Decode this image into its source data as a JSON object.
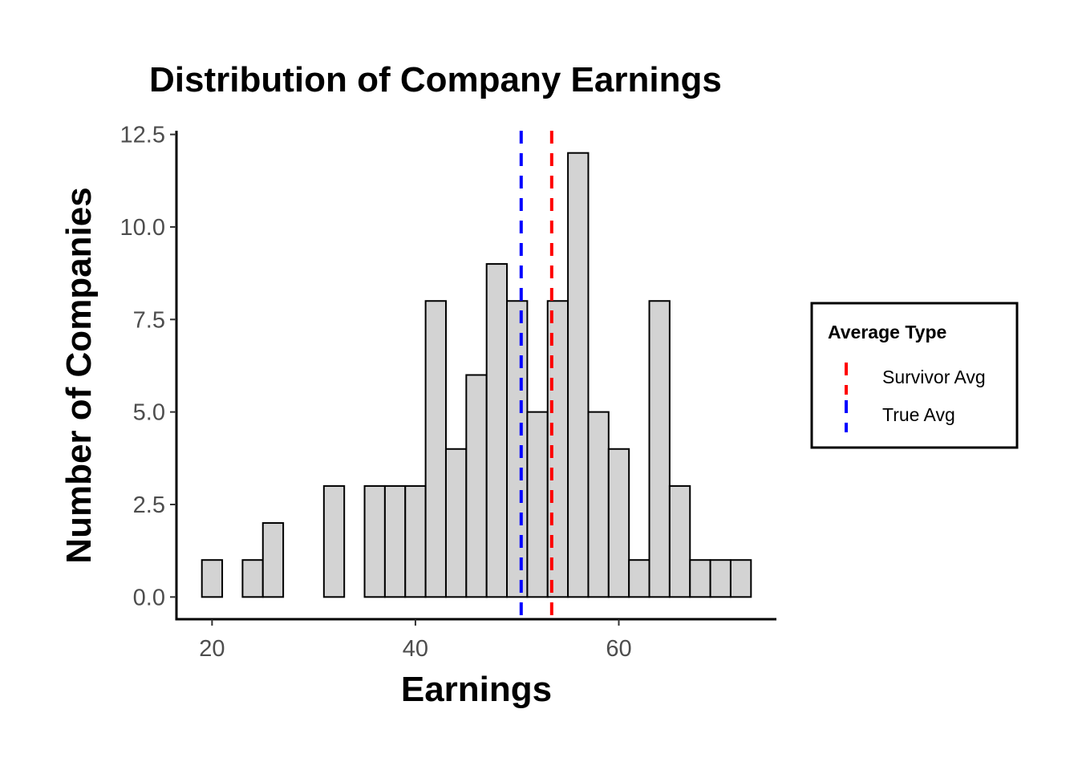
{
  "chart_data": {
    "type": "bar",
    "title": "Distribution of Company Earnings",
    "xlabel": "Earnings",
    "ylabel": "Number of Companies",
    "xlim": [
      16.5,
      75.5
    ],
    "ylim": [
      -0.6,
      12.6
    ],
    "x_ticks": [
      20,
      40,
      60
    ],
    "x_tick_labels": [
      "20",
      "40",
      "60"
    ],
    "y_ticks": [
      0,
      2.5,
      5,
      7.5,
      10,
      12.5
    ],
    "y_tick_labels": [
      "0.0",
      "2.5",
      "5.0",
      "7.5",
      "10.0",
      "12.5"
    ],
    "bin_width": 2,
    "bins": [
      {
        "x0": 19,
        "x1": 21,
        "count": 1
      },
      {
        "x0": 21,
        "x1": 23,
        "count": 0
      },
      {
        "x0": 23,
        "x1": 25,
        "count": 1
      },
      {
        "x0": 25,
        "x1": 27,
        "count": 2
      },
      {
        "x0": 27,
        "x1": 29,
        "count": 0
      },
      {
        "x0": 29,
        "x1": 31,
        "count": 0
      },
      {
        "x0": 31,
        "x1": 33,
        "count": 3
      },
      {
        "x0": 33,
        "x1": 35,
        "count": 0
      },
      {
        "x0": 35,
        "x1": 37,
        "count": 3
      },
      {
        "x0": 37,
        "x1": 39,
        "count": 3
      },
      {
        "x0": 39,
        "x1": 41,
        "count": 3
      },
      {
        "x0": 41,
        "x1": 43,
        "count": 8
      },
      {
        "x0": 43,
        "x1": 45,
        "count": 4
      },
      {
        "x0": 45,
        "x1": 47,
        "count": 6
      },
      {
        "x0": 47,
        "x1": 49,
        "count": 9
      },
      {
        "x0": 49,
        "x1": 51,
        "count": 8
      },
      {
        "x0": 51,
        "x1": 53,
        "count": 5
      },
      {
        "x0": 53,
        "x1": 55,
        "count": 8
      },
      {
        "x0": 55,
        "x1": 57,
        "count": 12
      },
      {
        "x0": 57,
        "x1": 59,
        "count": 5
      },
      {
        "x0": 59,
        "x1": 61,
        "count": 4
      },
      {
        "x0": 61,
        "x1": 63,
        "count": 1
      },
      {
        "x0": 63,
        "x1": 65,
        "count": 8
      },
      {
        "x0": 65,
        "x1": 67,
        "count": 3
      },
      {
        "x0": 67,
        "x1": 69,
        "count": 1
      },
      {
        "x0": 69,
        "x1": 71,
        "count": 1
      },
      {
        "x0": 71,
        "x1": 73,
        "count": 1
      }
    ],
    "bar_fill": "#d3d3d3",
    "bar_stroke": "#000000",
    "vlines": [
      {
        "name": "Survivor Avg",
        "x": 53.4,
        "color": "#ff0000"
      },
      {
        "name": "True Avg",
        "x": 50.4,
        "color": "#0000ff"
      }
    ],
    "legend": {
      "title": "Average Type",
      "placement": "right",
      "items": [
        {
          "label": "Survivor Avg",
          "color": "#ff0000"
        },
        {
          "label": "True Avg",
          "color": "#0000ff"
        }
      ]
    },
    "grid": false
  }
}
